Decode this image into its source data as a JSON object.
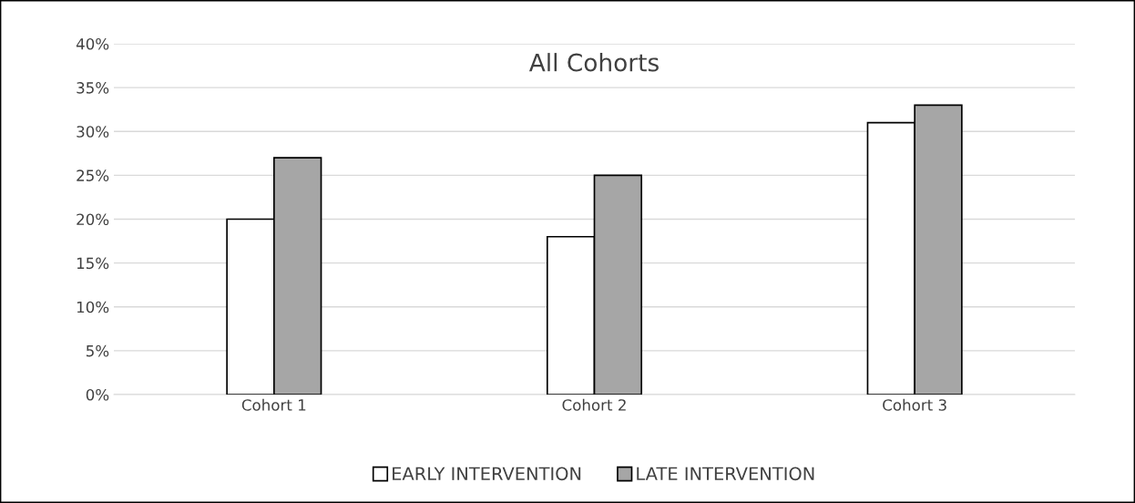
{
  "chart_data": {
    "type": "bar",
    "title": "All Cohorts",
    "categories": [
      "Cohort 1",
      "Cohort 2",
      "Cohort 3"
    ],
    "series": [
      {
        "name": "EARLY INTERVENTION",
        "color": "#ffffff",
        "values": [
          20,
          18,
          31
        ]
      },
      {
        "name": "LATE INTERVENTION",
        "color": "#a6a6a6",
        "values": [
          27,
          25,
          33
        ]
      }
    ],
    "ylim": [
      0,
      40
    ],
    "yticks": [
      {
        "value": 0,
        "label": "0%"
      },
      {
        "value": 5,
        "label": "5%"
      },
      {
        "value": 10,
        "label": "10%"
      },
      {
        "value": 15,
        "label": "15%"
      },
      {
        "value": 20,
        "label": "20%"
      },
      {
        "value": 25,
        "label": "25%"
      },
      {
        "value": 30,
        "label": "30%"
      },
      {
        "value": 35,
        "label": "35%"
      },
      {
        "value": 40,
        "label": "40%"
      }
    ],
    "grid": "y",
    "legend": "bottom"
  }
}
